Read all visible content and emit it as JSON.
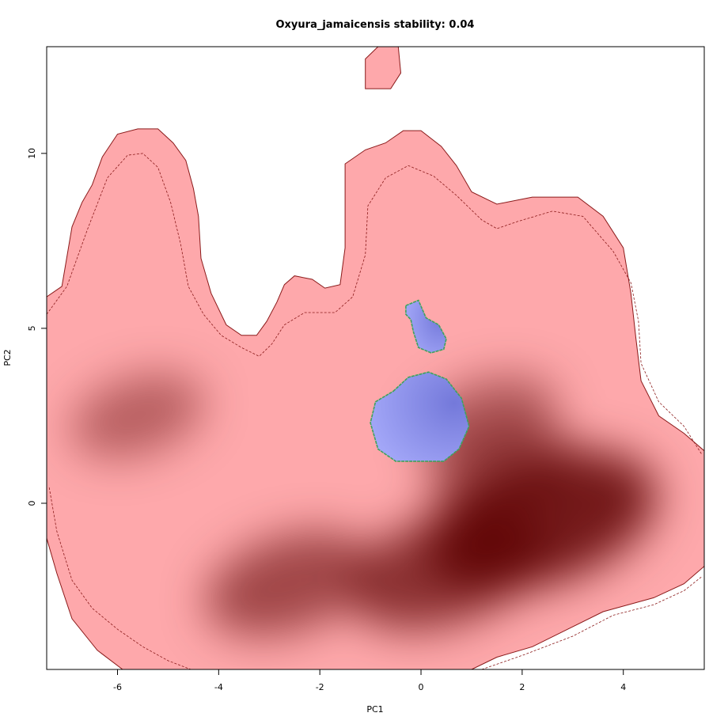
{
  "chart_data": {
    "type": "heatmap",
    "title": "Oxyura_jamaicensis stability: 0.04",
    "xlabel": "PC1",
    "ylabel": "PC2",
    "xlim": [
      -7.4,
      5.6
    ],
    "ylim": [
      -4.75,
      13.05
    ],
    "x_ticks": [
      -6,
      -4,
      -2,
      0,
      2,
      4
    ],
    "y_ticks": [
      0,
      5,
      10
    ],
    "grid": false,
    "colors": {
      "range_fill": "#fea8ab",
      "range_outline": "#8b1a1a",
      "density_peak": "#5c0000",
      "niche_fill": "#a3a7f8",
      "niche_dark": "#7479da",
      "niche_outline": "#3da35d"
    },
    "series": [
      {
        "role": "background",
        "outline": [
          [
            -7.4,
            5.9
          ],
          [
            -7.1,
            6.2
          ],
          [
            -6.9,
            7.9
          ],
          [
            -6.7,
            8.6
          ],
          [
            -6.5,
            9.1
          ],
          [
            -6.3,
            9.9
          ],
          [
            -6.0,
            10.55
          ],
          [
            -5.6,
            10.7
          ],
          [
            -5.2,
            10.7
          ],
          [
            -4.9,
            10.3
          ],
          [
            -4.65,
            9.8
          ],
          [
            -4.5,
            9.0
          ],
          [
            -4.4,
            8.2
          ],
          [
            -4.35,
            7.0
          ],
          [
            -4.15,
            6.0
          ],
          [
            -3.85,
            5.1
          ],
          [
            -3.55,
            4.8
          ],
          [
            -3.25,
            4.8
          ],
          [
            -3.05,
            5.2
          ],
          [
            -2.85,
            5.75
          ],
          [
            -2.7,
            6.25
          ],
          [
            -2.5,
            6.5
          ],
          [
            -2.15,
            6.4
          ],
          [
            -1.9,
            6.15
          ],
          [
            -1.6,
            6.25
          ],
          [
            -1.5,
            7.3
          ],
          [
            -1.5,
            9.7
          ],
          [
            -1.1,
            10.1
          ],
          [
            -0.7,
            10.3
          ],
          [
            -0.35,
            10.65
          ],
          [
            0.0,
            10.65
          ],
          [
            0.4,
            10.2
          ],
          [
            0.7,
            9.65
          ],
          [
            1.0,
            8.9
          ],
          [
            1.5,
            8.55
          ],
          [
            2.2,
            8.75
          ],
          [
            3.1,
            8.75
          ],
          [
            3.6,
            8.2
          ],
          [
            4.0,
            7.3
          ],
          [
            4.15,
            6.0
          ],
          [
            4.25,
            4.7
          ],
          [
            4.35,
            3.5
          ],
          [
            4.7,
            2.5
          ],
          [
            5.2,
            2.0
          ],
          [
            5.6,
            1.5
          ],
          [
            5.6,
            -1.8
          ],
          [
            5.2,
            -2.3
          ],
          [
            4.6,
            -2.7
          ],
          [
            3.6,
            -3.1
          ],
          [
            2.9,
            -3.6
          ],
          [
            2.2,
            -4.1
          ],
          [
            1.5,
            -4.4
          ],
          [
            1.0,
            -4.75
          ],
          [
            -5.9,
            -4.75
          ],
          [
            -6.4,
            -4.2
          ],
          [
            -6.9,
            -3.3
          ],
          [
            -7.2,
            -2.0
          ],
          [
            -7.4,
            -1.0
          ]
        ]
      },
      {
        "role": "background",
        "outline": [
          [
            -1.1,
            12.7
          ],
          [
            -0.85,
            13.05
          ],
          [
            -0.45,
            13.05
          ],
          [
            -0.4,
            12.3
          ],
          [
            -0.6,
            11.85
          ],
          [
            -1.1,
            11.85
          ]
        ]
      },
      {
        "role": "background_dashed",
        "line": [
          [
            -7.4,
            5.4
          ],
          [
            -7.0,
            6.2
          ],
          [
            -6.6,
            7.8
          ],
          [
            -6.2,
            9.3
          ],
          [
            -5.8,
            9.95
          ],
          [
            -5.5,
            10.0
          ],
          [
            -5.2,
            9.6
          ],
          [
            -4.95,
            8.6
          ],
          [
            -4.75,
            7.4
          ],
          [
            -4.6,
            6.2
          ],
          [
            -4.3,
            5.4
          ],
          [
            -3.95,
            4.8
          ],
          [
            -3.55,
            4.45
          ],
          [
            -3.2,
            4.2
          ],
          [
            -2.95,
            4.55
          ],
          [
            -2.7,
            5.1
          ],
          [
            -2.3,
            5.45
          ],
          [
            -1.7,
            5.45
          ],
          [
            -1.35,
            5.9
          ],
          [
            -1.1,
            7.1
          ],
          [
            -1.05,
            8.5
          ],
          [
            -0.7,
            9.3
          ],
          [
            -0.25,
            9.65
          ],
          [
            0.25,
            9.35
          ],
          [
            0.7,
            8.8
          ],
          [
            1.2,
            8.1
          ],
          [
            1.5,
            7.85
          ],
          [
            1.9,
            8.05
          ],
          [
            2.6,
            8.35
          ],
          [
            3.2,
            8.2
          ],
          [
            3.8,
            7.2
          ],
          [
            4.15,
            6.3
          ],
          [
            4.3,
            5.2
          ],
          [
            4.35,
            4.0
          ],
          [
            4.7,
            2.9
          ],
          [
            5.2,
            2.2
          ],
          [
            5.55,
            1.4
          ]
        ]
      },
      {
        "role": "background_dashed",
        "line": [
          [
            -7.35,
            0.45
          ],
          [
            -7.2,
            -0.8
          ],
          [
            -6.9,
            -2.2
          ],
          [
            -6.5,
            -3.0
          ],
          [
            -6.0,
            -3.6
          ],
          [
            -5.5,
            -4.1
          ],
          [
            -5.0,
            -4.5
          ],
          [
            -4.55,
            -4.75
          ]
        ]
      },
      {
        "role": "background_dashed",
        "line": [
          [
            1.2,
            -4.75
          ],
          [
            2.0,
            -4.35
          ],
          [
            3.0,
            -3.8
          ],
          [
            3.8,
            -3.2
          ],
          [
            4.6,
            -2.9
          ],
          [
            5.2,
            -2.5
          ],
          [
            5.55,
            -2.1
          ]
        ]
      },
      {
        "role": "niche",
        "outline": [
          [
            -0.55,
            3.2
          ],
          [
            -0.25,
            3.6
          ],
          [
            0.15,
            3.75
          ],
          [
            0.5,
            3.55
          ],
          [
            0.8,
            3.0
          ],
          [
            0.95,
            2.2
          ],
          [
            0.75,
            1.55
          ],
          [
            0.45,
            1.2
          ],
          [
            -0.5,
            1.2
          ],
          [
            -0.85,
            1.55
          ],
          [
            -1.0,
            2.3
          ],
          [
            -0.9,
            2.9
          ]
        ]
      },
      {
        "role": "niche",
        "outline": [
          [
            -0.3,
            5.65
          ],
          [
            -0.05,
            5.8
          ],
          [
            0.1,
            5.3
          ],
          [
            0.35,
            5.1
          ],
          [
            0.5,
            4.7
          ],
          [
            0.45,
            4.4
          ],
          [
            0.2,
            4.3
          ],
          [
            -0.05,
            4.45
          ],
          [
            -0.15,
            4.9
          ],
          [
            -0.2,
            5.25
          ],
          [
            -0.3,
            5.4
          ]
        ]
      }
    ],
    "density_peaks": [
      {
        "x": 2.4,
        "y": -0.5,
        "strength": 1.0
      },
      {
        "x": 0.5,
        "y": -1.9,
        "strength": 0.75
      },
      {
        "x": -2.6,
        "y": -2.3,
        "strength": 0.55
      },
      {
        "x": -5.6,
        "y": 2.5,
        "strength": 0.3
      },
      {
        "x": 1.3,
        "y": 2.4,
        "strength": 0.35
      },
      {
        "x": 1.6,
        "y": 1.0,
        "strength": 0.4
      }
    ]
  }
}
